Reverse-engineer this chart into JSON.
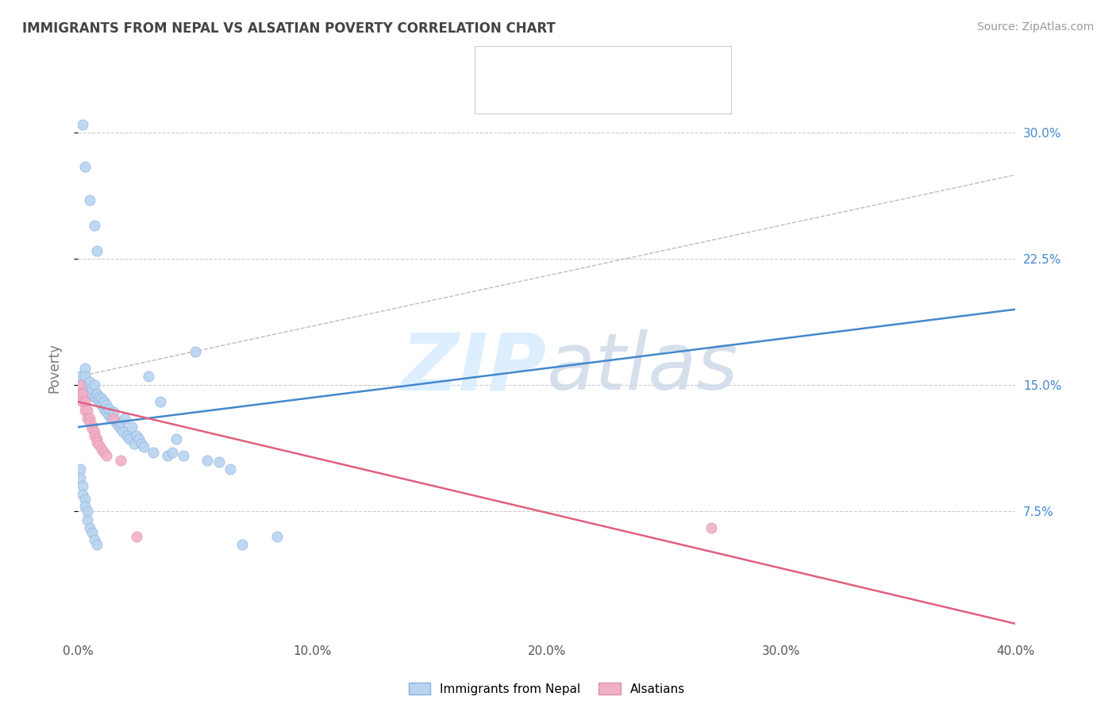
{
  "title": "IMMIGRANTS FROM NEPAL VS ALSATIAN POVERTY CORRELATION CHART",
  "source": "Source: ZipAtlas.com",
  "ylabel": "Poverty",
  "right_yticks": [
    "30.0%",
    "22.5%",
    "15.0%",
    "7.5%"
  ],
  "right_ytick_values": [
    0.3,
    0.225,
    0.15,
    0.075
  ],
  "background_color": "#ffffff",
  "blue_scatter_x": [
    0.002,
    0.003,
    0.005,
    0.007,
    0.008,
    0.001,
    0.002,
    0.003,
    0.003,
    0.004,
    0.004,
    0.005,
    0.005,
    0.005,
    0.006,
    0.006,
    0.007,
    0.007,
    0.008,
    0.008,
    0.009,
    0.009,
    0.01,
    0.01,
    0.011,
    0.011,
    0.012,
    0.012,
    0.013,
    0.013,
    0.014,
    0.015,
    0.015,
    0.016,
    0.017,
    0.018,
    0.018,
    0.019,
    0.02,
    0.021,
    0.022,
    0.023,
    0.024,
    0.025,
    0.026,
    0.027,
    0.028,
    0.03,
    0.032,
    0.035,
    0.038,
    0.04,
    0.042,
    0.045,
    0.05,
    0.055,
    0.06,
    0.065,
    0.07,
    0.085,
    0.001,
    0.001,
    0.002,
    0.002,
    0.003,
    0.003,
    0.004,
    0.004,
    0.005,
    0.006,
    0.007,
    0.008
  ],
  "blue_scatter_y": [
    0.305,
    0.28,
    0.26,
    0.245,
    0.23,
    0.155,
    0.15,
    0.16,
    0.155,
    0.15,
    0.145,
    0.145,
    0.148,
    0.152,
    0.145,
    0.148,
    0.143,
    0.15,
    0.142,
    0.145,
    0.14,
    0.143,
    0.138,
    0.142,
    0.136,
    0.14,
    0.134,
    0.138,
    0.132,
    0.136,
    0.13,
    0.13,
    0.134,
    0.128,
    0.126,
    0.124,
    0.128,
    0.122,
    0.13,
    0.12,
    0.118,
    0.125,
    0.115,
    0.12,
    0.118,
    0.115,
    0.113,
    0.155,
    0.11,
    0.14,
    0.108,
    0.11,
    0.118,
    0.108,
    0.17,
    0.105,
    0.104,
    0.1,
    0.055,
    0.06,
    0.1,
    0.095,
    0.09,
    0.085,
    0.082,
    0.078,
    0.075,
    0.07,
    0.065,
    0.062,
    0.058,
    0.055
  ],
  "pink_scatter_x": [
    0.001,
    0.001,
    0.002,
    0.002,
    0.003,
    0.003,
    0.004,
    0.004,
    0.005,
    0.005,
    0.006,
    0.006,
    0.007,
    0.007,
    0.008,
    0.008,
    0.009,
    0.01,
    0.011,
    0.012,
    0.015,
    0.018,
    0.025,
    0.27
  ],
  "pink_scatter_y": [
    0.15,
    0.145,
    0.145,
    0.14,
    0.14,
    0.135,
    0.135,
    0.13,
    0.13,
    0.128,
    0.126,
    0.124,
    0.122,
    0.12,
    0.118,
    0.116,
    0.114,
    0.112,
    0.11,
    0.108,
    0.13,
    0.105,
    0.06,
    0.065
  ],
  "blue_line_x": [
    0.0,
    0.4
  ],
  "blue_line_y": [
    0.125,
    0.195
  ],
  "pink_line_x": [
    0.0,
    0.4
  ],
  "pink_line_y": [
    0.14,
    0.008
  ],
  "gray_line_x": [
    0.0,
    0.4
  ],
  "gray_line_y": [
    0.155,
    0.275
  ],
  "xlim": [
    0.0,
    0.4
  ],
  "ylim": [
    0.0,
    0.32
  ],
  "xtick_positions": [
    0.0,
    0.1,
    0.2,
    0.3,
    0.4
  ],
  "xtick_labels": [
    "0.0%",
    "10.0%",
    "20.0%",
    "30.0%",
    "40.0%"
  ]
}
